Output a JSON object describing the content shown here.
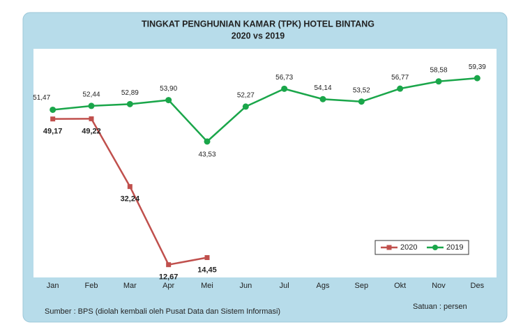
{
  "chart_data": {
    "type": "line",
    "title": "TINGKAT PENGHUNIAN KAMAR (TPK) HOTEL BINTANG",
    "subtitle": "2020 vs  2019",
    "categories": [
      "Jan",
      "Feb",
      "Mar",
      "Apr",
      "Mei",
      "Jun",
      "Jul",
      "Ags",
      "Sep",
      "Okt",
      "Nov",
      "Des"
    ],
    "series": [
      {
        "name": "2020",
        "color": "#c0504d",
        "marker": "square",
        "values": [
          49.17,
          49.22,
          32.24,
          12.67,
          14.45,
          null,
          null,
          null,
          null,
          null,
          null,
          null
        ],
        "value_labels": [
          "49,17",
          "49,22",
          "32,24",
          "12,67",
          "14,45",
          null,
          null,
          null,
          null,
          null,
          null,
          null
        ]
      },
      {
        "name": "2019",
        "color": "#1aa64a",
        "marker": "circle",
        "values": [
          51.47,
          52.44,
          52.89,
          53.9,
          43.53,
          52.27,
          56.73,
          54.14,
          53.52,
          56.77,
          58.58,
          59.39
        ],
        "value_labels": [
          "51,47",
          "52,44",
          "52,89",
          "53,90",
          "43,53",
          "52,27",
          "56,73",
          "54,14",
          "53,52",
          "56,77",
          "58,58",
          "59,39"
        ]
      }
    ],
    "ylim": [
      10,
      65
    ],
    "legend": "lower right",
    "source": "Sumber : BPS (diolah kembali oleh Pusat Data dan Sistem Informasi)",
    "unit_note": "Satuan : persen"
  }
}
